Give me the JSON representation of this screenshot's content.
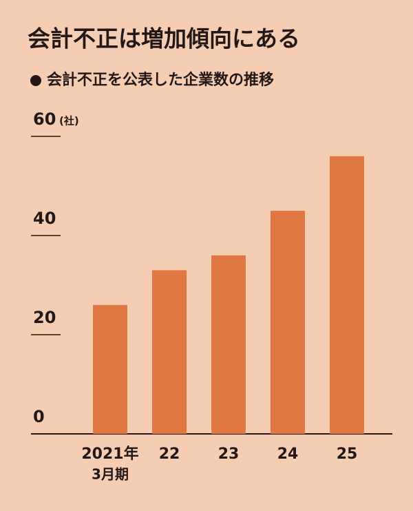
{
  "chart_data": {
    "type": "bar",
    "title": "会計不正は増加傾向にある",
    "subtitle": "会計不正を公表した企業数の推移",
    "y_unit": "(社)",
    "categories": [
      "2021年",
      "22",
      "23",
      "24",
      "25"
    ],
    "x_note": "3月期",
    "values": [
      26,
      33,
      36,
      45,
      56
    ],
    "color": "#e07843",
    "ylim": [
      0,
      60
    ],
    "yticks": [
      0,
      20,
      40,
      60
    ]
  }
}
